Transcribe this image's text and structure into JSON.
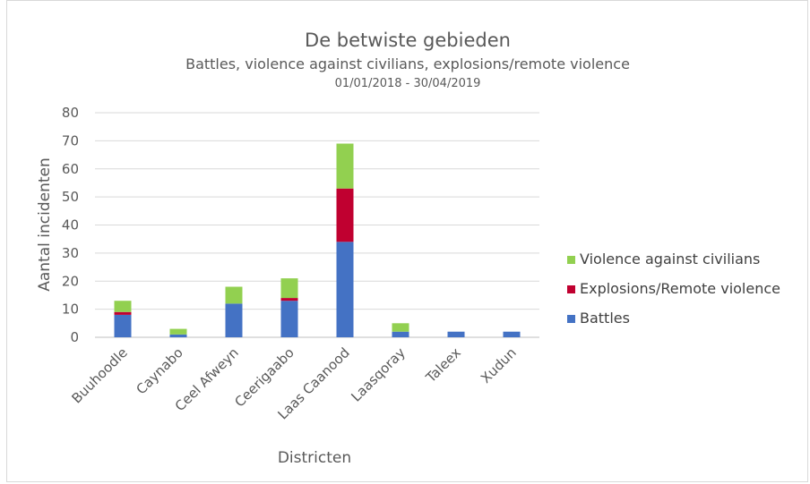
{
  "chart_data": {
    "type": "bar",
    "stacked": true,
    "title": "De betwiste gebieden",
    "subtitle": "Battles, violence against civilians, explosions/remote violence",
    "date_range": "01/01/2018 - 30/04/2019",
    "xlabel": "Districten",
    "ylabel": "Aantal incidenten",
    "ylim": [
      0,
      80
    ],
    "yticks": [
      0,
      10,
      20,
      30,
      40,
      50,
      60,
      70,
      80
    ],
    "grid": true,
    "legend_position": "right",
    "categories": [
      "Buuhoodle",
      "Caynabo",
      "Ceel Afweyn",
      "Ceerigaabo",
      "Laas Caanood",
      "Laasqoray",
      "Taleex",
      "Xudun"
    ],
    "series": [
      {
        "name": "Battles",
        "color": "#4472c4",
        "values": [
          8,
          1,
          12,
          13,
          34,
          2,
          2,
          2
        ]
      },
      {
        "name": "Explosions/Remote violence",
        "color": "#c00030",
        "values": [
          1,
          0,
          0,
          1,
          19,
          0,
          0,
          0
        ]
      },
      {
        "name": "Violence against civilians",
        "color": "#92d050",
        "values": [
          4,
          2,
          6,
          7,
          16,
          3,
          0,
          0
        ]
      }
    ],
    "legend_order": [
      "Violence against civilians",
      "Explosions/Remote violence",
      "Battles"
    ]
  }
}
